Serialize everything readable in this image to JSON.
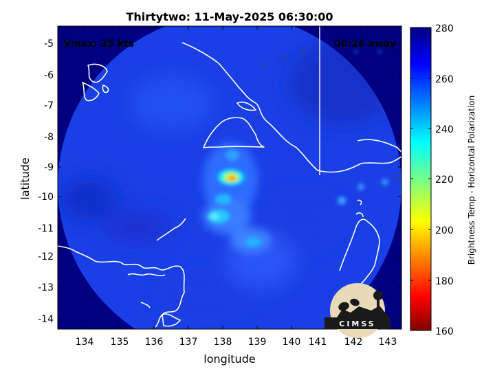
{
  "figure": {
    "title": "Thirtytwo: 11-May-2025 06:30:00",
    "vmax": "Vmax: 35 kts",
    "time_away": "00:26 away",
    "xlabel": "longitude",
    "ylabel": "latitude",
    "colorbar_label": "Brightness Temp - Horizontal Polarization",
    "logo_text": "CIMSS"
  },
  "axes": {
    "xlim": [
      133.3,
      143.3
    ],
    "ylim": [
      -14.4,
      -4.5
    ],
    "xticks": [
      "134",
      "135",
      "136",
      "137",
      "138",
      "139",
      "140",
      "141",
      "142",
      "143"
    ],
    "yticks": [
      "-5",
      "-6",
      "-7",
      "-8",
      "-9",
      "-10",
      "-11",
      "-12",
      "-13",
      "-14"
    ]
  },
  "colorbar": {
    "min": 160,
    "max": 280,
    "ticks": [
      "280",
      "260",
      "240",
      "220",
      "200",
      "180",
      "160"
    ],
    "colormap": "jet"
  },
  "colors": {
    "background_swath": "#1a3fe6",
    "outside": "#000080",
    "coastline": "#ffffff"
  },
  "chart_data": {
    "type": "heatmap",
    "title": "Thirtytwo: 11-May-2025 06:30:00",
    "xlabel": "longitude",
    "ylabel": "latitude",
    "xlim": [
      133.3,
      143.3
    ],
    "ylim": [
      -14.4,
      -4.5
    ],
    "value_range": [
      160,
      280
    ],
    "features": [
      {
        "lon": 138.4,
        "lat": -9.4,
        "value": 205
      },
      {
        "lon": 138.3,
        "lat": -8.7,
        "value": 238
      },
      {
        "lon": 138.1,
        "lat": -10.1,
        "value": 238
      },
      {
        "lon": 138.0,
        "lat": -10.7,
        "value": 232
      },
      {
        "lon": 138.7,
        "lat": -11.5,
        "value": 240
      },
      {
        "lon": 142.1,
        "lat": -10.2,
        "value": 245
      },
      {
        "lon": 142.7,
        "lat": -10.2,
        "value": 250
      }
    ]
  }
}
